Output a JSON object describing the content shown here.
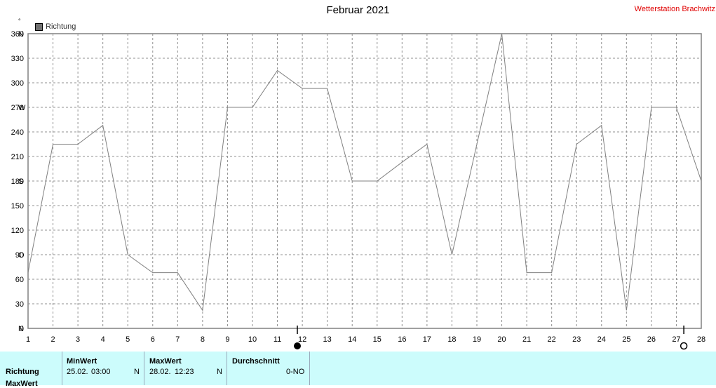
{
  "header": {
    "title": "Februar 2021",
    "station": "Wetterstation Brachwitz",
    "degree_symbol": "°",
    "legend_label": "Richtung"
  },
  "chart_data": {
    "type": "line",
    "title": "Februar 2021",
    "xlabel": "",
    "ylabel": "",
    "series": [
      {
        "name": "Richtung",
        "color": "#808080",
        "x": [
          1,
          2,
          3,
          4,
          5,
          6,
          7,
          8,
          9,
          10,
          11,
          12,
          13,
          14,
          15,
          16,
          17,
          18,
          19,
          20,
          21,
          22,
          23,
          24,
          25,
          26,
          27,
          28
        ],
        "values": [
          68,
          225,
          225,
          248,
          90,
          68,
          68,
          22,
          270,
          270,
          315,
          293,
          293,
          180,
          180,
          203,
          225,
          90,
          225,
          360,
          68,
          68,
          225,
          248,
          22,
          270,
          270,
          180
        ]
      }
    ],
    "xlim": [
      1,
      28
    ],
    "ylim": [
      0,
      360
    ],
    "x_ticks": [
      "1",
      "2",
      "3",
      "4",
      "5",
      "6",
      "7",
      "8",
      "9",
      "10",
      "11",
      "12",
      "13",
      "14",
      "15",
      "16",
      "17",
      "18",
      "19",
      "20",
      "21",
      "22",
      "23",
      "24",
      "25",
      "26",
      "27",
      "28"
    ],
    "y_ticks": [
      {
        "value": 0,
        "label": "0",
        "dir": "N"
      },
      {
        "value": 30,
        "label": "30",
        "dir": ""
      },
      {
        "value": 60,
        "label": "60",
        "dir": ""
      },
      {
        "value": 90,
        "label": "90",
        "dir": "O"
      },
      {
        "value": 120,
        "label": "120",
        "dir": ""
      },
      {
        "value": 150,
        "label": "150",
        "dir": ""
      },
      {
        "value": 180,
        "label": "180",
        "dir": "S"
      },
      {
        "value": 210,
        "label": "210",
        "dir": ""
      },
      {
        "value": 240,
        "label": "240",
        "dir": ""
      },
      {
        "value": 270,
        "label": "270",
        "dir": "W"
      },
      {
        "value": 300,
        "label": "300",
        "dir": ""
      },
      {
        "value": 330,
        "label": "330",
        "dir": ""
      },
      {
        "value": 360,
        "label": "360",
        "dir": "N"
      }
    ],
    "grid": true,
    "moon_phases": [
      {
        "day": 11.8,
        "phase": "full-moon"
      },
      {
        "day": 27.3,
        "phase": "new-moon"
      }
    ]
  },
  "panel": {
    "row_label": "Richtung",
    "row_label_2": "MaxWert",
    "min_header": "MinWert",
    "min_date": "25.02.",
    "min_time": "03:00",
    "min_dir": "N",
    "max_header": "MaxWert",
    "max_date": "28.02.",
    "max_time": "12:23",
    "max_dir": "N",
    "avg_header": "Durchschnitt",
    "avg_value": "0-NO"
  }
}
